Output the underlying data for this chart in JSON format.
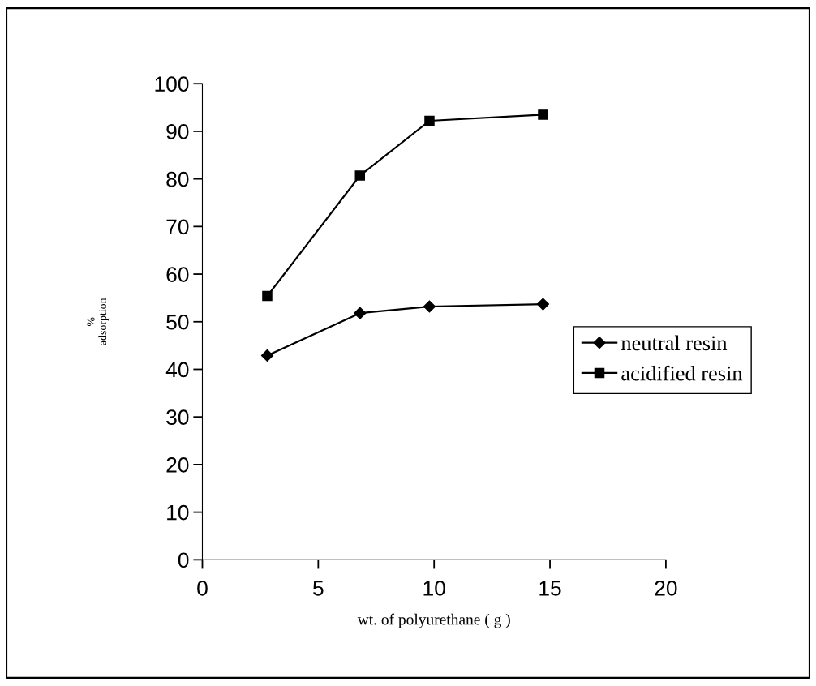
{
  "chart_data": {
    "type": "line",
    "xlabel": "wt. of polyurethane ( g )",
    "ylabel": "%\nadsorption",
    "x": [
      2.8,
      6.8,
      9.8,
      14.7
    ],
    "series": [
      {
        "name": "neutral resin",
        "color": "#000000",
        "marker": "diamond",
        "values": [
          42.9,
          51.8,
          53.2,
          53.7
        ]
      },
      {
        "name": "acidified resin",
        "color": "#000000",
        "marker": "square",
        "values": [
          55.4,
          80.7,
          92.2,
          93.5
        ]
      }
    ],
    "xlim": [
      0,
      20
    ],
    "xticks": [
      0,
      5,
      10,
      15,
      20
    ],
    "ylim": [
      0,
      100
    ],
    "yticks": [
      0,
      10,
      20,
      30,
      40,
      50,
      60,
      70,
      80,
      90,
      100
    ],
    "grid": false,
    "legend": "right",
    "line_style": "solid"
  }
}
